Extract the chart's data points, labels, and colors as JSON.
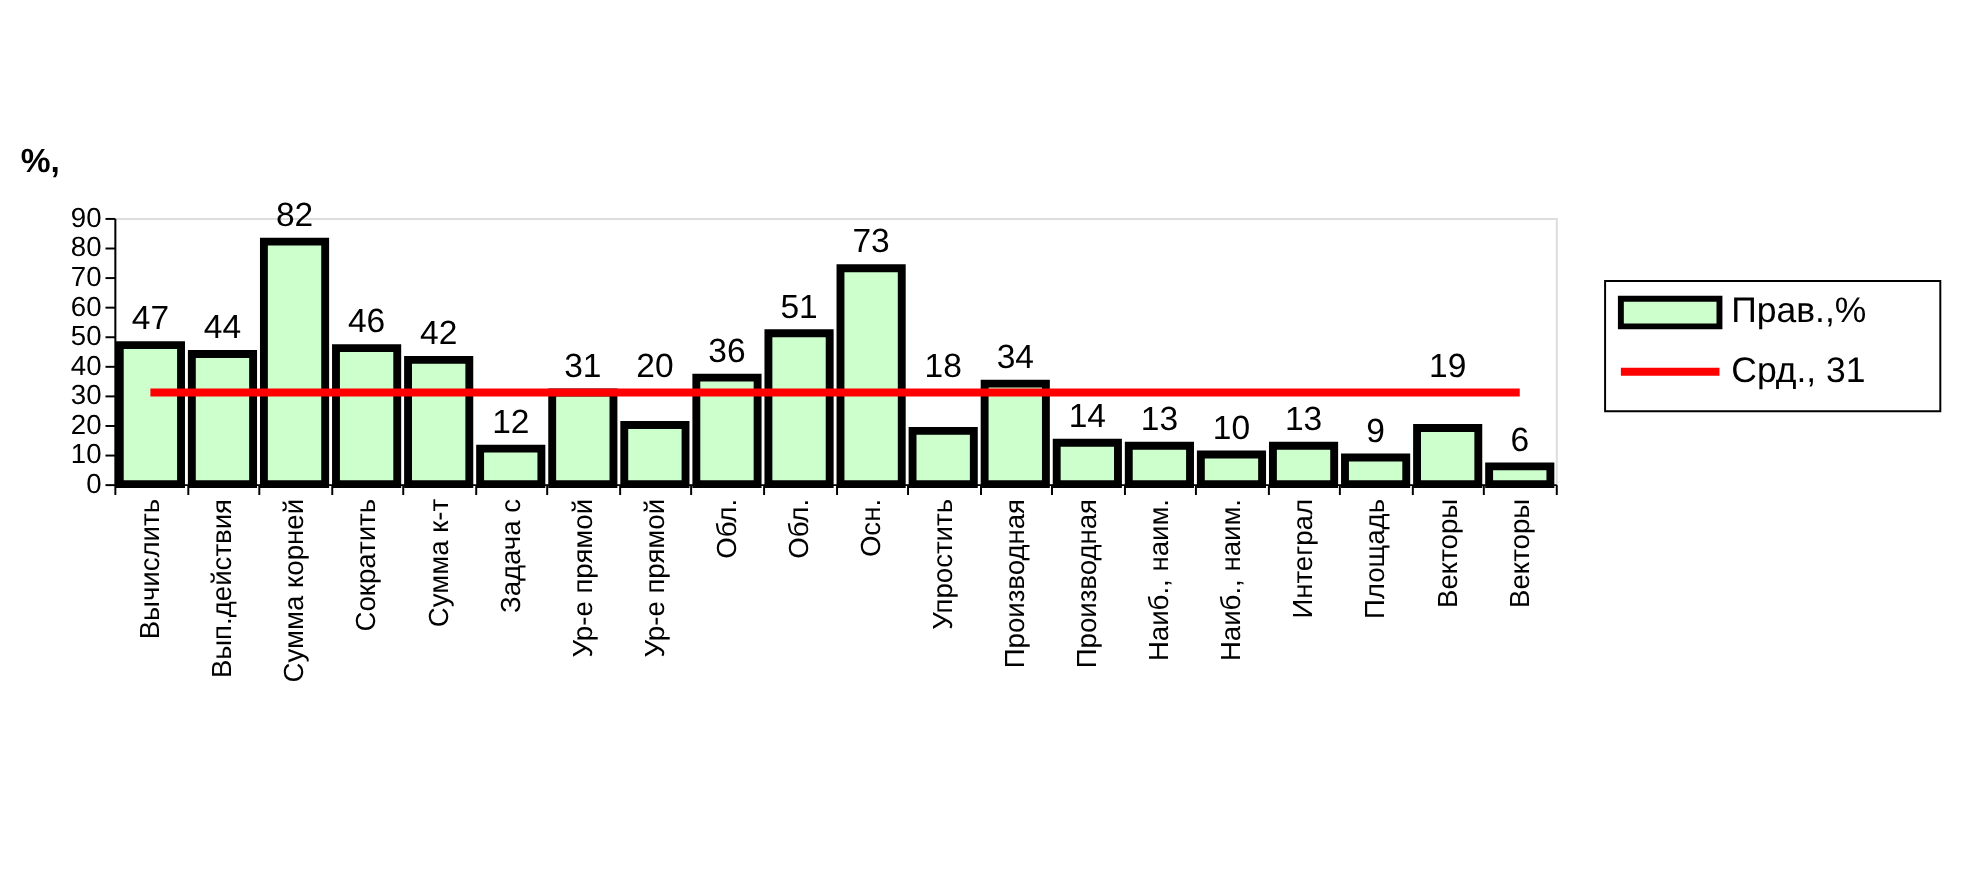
{
  "chart_data": {
    "type": "bar",
    "ylabel": "%,",
    "categories": [
      "Вычислить",
      "Вып.действия",
      "Сумма корней",
      "Сократить",
      "Сумма к-т",
      "Задача с",
      "Ур-е прямой",
      "Ур-е прямой",
      "Обл.",
      "Обл.",
      "Осн.",
      "Упростить",
      "Производная",
      "Производная",
      "Наиб., наим.",
      "Наиб., наим.",
      "Интеграл",
      "Площадь",
      "Векторы",
      "Векторы"
    ],
    "series": [
      {
        "name": "Прав.,%",
        "color": "#ccffcc",
        "values": [
          47,
          44,
          82,
          46,
          42,
          12,
          31,
          20,
          36,
          51,
          73,
          18,
          34,
          14,
          13,
          10,
          13,
          9,
          19,
          6
        ],
        "value_labels": [
          "47",
          "44",
          "82",
          "46",
          "42",
          "12",
          "31",
          "20",
          "36",
          "51",
          "73",
          "18",
          "34",
          "14",
          "13",
          "10",
          "13",
          "9",
          "19",
          "6"
        ]
      },
      {
        "name": "Срд., 31",
        "type": "line",
        "color": "#ff0000",
        "values": [
          31,
          31,
          31,
          31,
          31,
          31,
          31,
          31,
          31,
          31,
          31,
          31,
          31,
          31,
          31,
          31,
          31,
          31,
          31,
          31
        ]
      }
    ],
    "ylim": [
      0,
      90
    ],
    "yticks": [
      0,
      10,
      20,
      30,
      40,
      50,
      60,
      70,
      80,
      90
    ],
    "grid": false,
    "legend": "right"
  }
}
